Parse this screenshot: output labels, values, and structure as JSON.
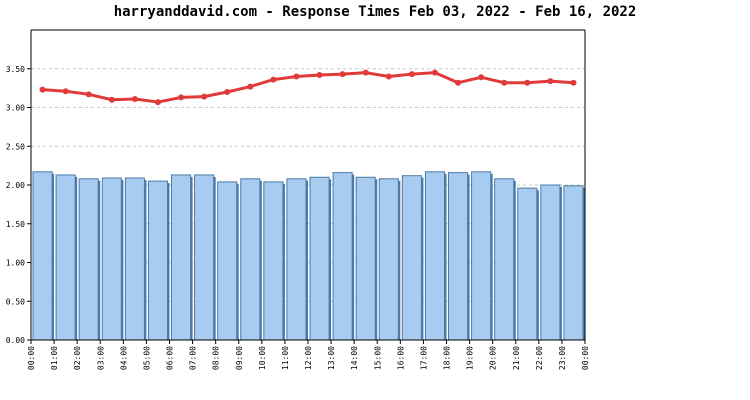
{
  "chart_data": {
    "type": "bar",
    "title": "harryanddavid.com - Response Times Feb 03, 2022 - Feb 16, 2022",
    "xlabel": "",
    "ylabel": "",
    "ylim": [
      0,
      4.0
    ],
    "y_ticks": [
      "0.00",
      "0.50",
      "1.00",
      "1.50",
      "2.00",
      "2.50",
      "3.00",
      "3.50"
    ],
    "y_tick_values": [
      0,
      0.5,
      1.0,
      1.5,
      2.0,
      2.5,
      3.0,
      3.5
    ],
    "grid": true,
    "legend": "none",
    "x_tick_labels": [
      "00:00",
      "01:00",
      "02:00",
      "03:00",
      "04:00",
      "05:00",
      "06:00",
      "07:00",
      "08:00",
      "09:00",
      "10:00",
      "11:00",
      "12:00",
      "13:00",
      "14:00",
      "15:00",
      "16:00",
      "17:00",
      "18:00",
      "19:00",
      "20:00",
      "21:00",
      "22:00",
      "23:00",
      "00:00"
    ],
    "series": [
      {
        "type": "bar",
        "color": "#a8ccf0",
        "edge_color": "#4a7aa8",
        "values": [
          2.17,
          2.13,
          2.08,
          2.09,
          2.09,
          2.05,
          2.13,
          2.13,
          2.04,
          2.08,
          2.04,
          2.08,
          2.1,
          2.16,
          2.1,
          2.08,
          2.12,
          2.17,
          2.16,
          2.17,
          2.08,
          1.96,
          2.0,
          1.99
        ]
      },
      {
        "type": "line",
        "color": "#e03a3a",
        "values": [
          3.23,
          3.21,
          3.17,
          3.1,
          3.11,
          3.07,
          3.13,
          3.14,
          3.2,
          3.27,
          3.36,
          3.4,
          3.42,
          3.43,
          3.45,
          3.4,
          3.43,
          3.45,
          3.32,
          3.39,
          3.32,
          3.32,
          3.34,
          3.32
        ]
      }
    ]
  }
}
